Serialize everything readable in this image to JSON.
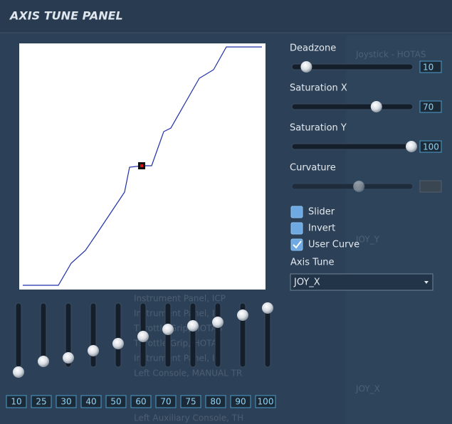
{
  "title": "AXIS TUNE PANEL",
  "background_text": [
    "Joystick - HOTAS",
    "JOY_Y",
    "JOY_X",
    "Instrument Panel, ICP",
    "Instrument Panel, I",
    "Throttle Grip, HOTAS",
    "Throttle Grip, HOTA",
    "Instrument Panel, IC",
    "Left Console, MANUAL TR",
    "Left Auxiliary Console, TH"
  ],
  "slider_range": [
    0,
    100
  ],
  "sliders": [
    {
      "label": "Deadzone",
      "value": 10
    },
    {
      "label": "Saturation X",
      "value": 70
    },
    {
      "label": "Saturation Y",
      "value": 100
    },
    {
      "label": "Curvature",
      "value": 55
    }
  ],
  "checkboxes": [
    {
      "label": "Slider",
      "checked": false
    },
    {
      "label": "Invert",
      "checked": false
    },
    {
      "label": "User Curve",
      "checked": true
    }
  ],
  "axis_tune": {
    "label": "Axis Tune",
    "selected": "JOY_X"
  },
  "curve_points": [
    10,
    25,
    30,
    40,
    50,
    60,
    70,
    75,
    80,
    90,
    100
  ]
}
